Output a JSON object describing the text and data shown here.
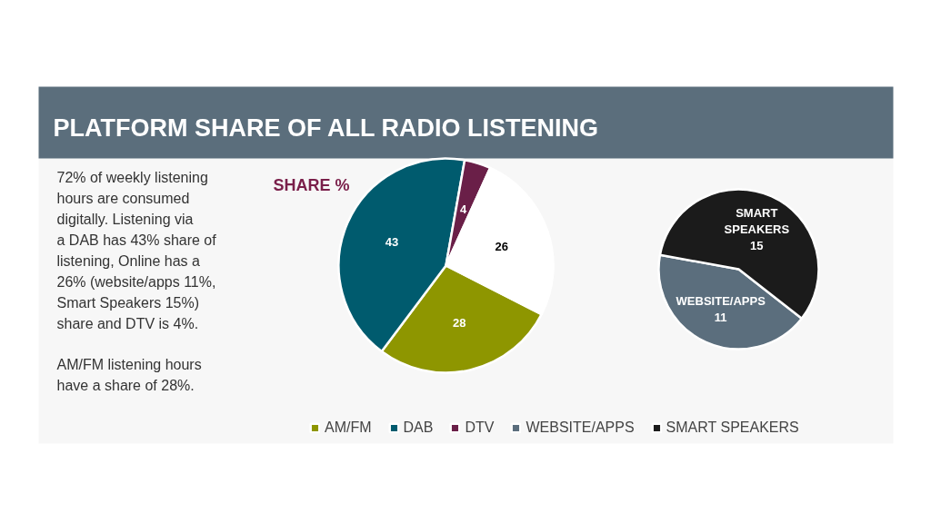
{
  "chart_data": [
    {
      "type": "pie",
      "title": "PLATFORM SHARE OF ALL RADIO LISTENING",
      "subtitle": "SHARE %",
      "annotations": [
        "72% of weekly listening hours are consumed digitally. Listening via a DAB has 43% share of listening,  Online has a 26% (website/apps 11%, Smart Speakers 15%) share and DTV is 4%.",
        "AM/FM listening hours have a share of 28%."
      ],
      "categories": [
        "AM/FM",
        "DAB",
        "DTV",
        null
      ],
      "values": [
        28,
        43,
        4,
        26
      ],
      "colors": [
        "#8e9600",
        "#005b6e",
        "#6a1f48",
        "#ffffff"
      ],
      "data_labels": true,
      "legend": "bottom"
    },
    {
      "type": "pie",
      "categories": [
        "WEBSITE/APPS",
        "SMART SPEAKERS"
      ],
      "values": [
        11,
        15
      ],
      "colors": [
        "#5b6e7d",
        "#1b1b1b"
      ],
      "data_labels": true,
      "legend": "bottom"
    }
  ]
}
